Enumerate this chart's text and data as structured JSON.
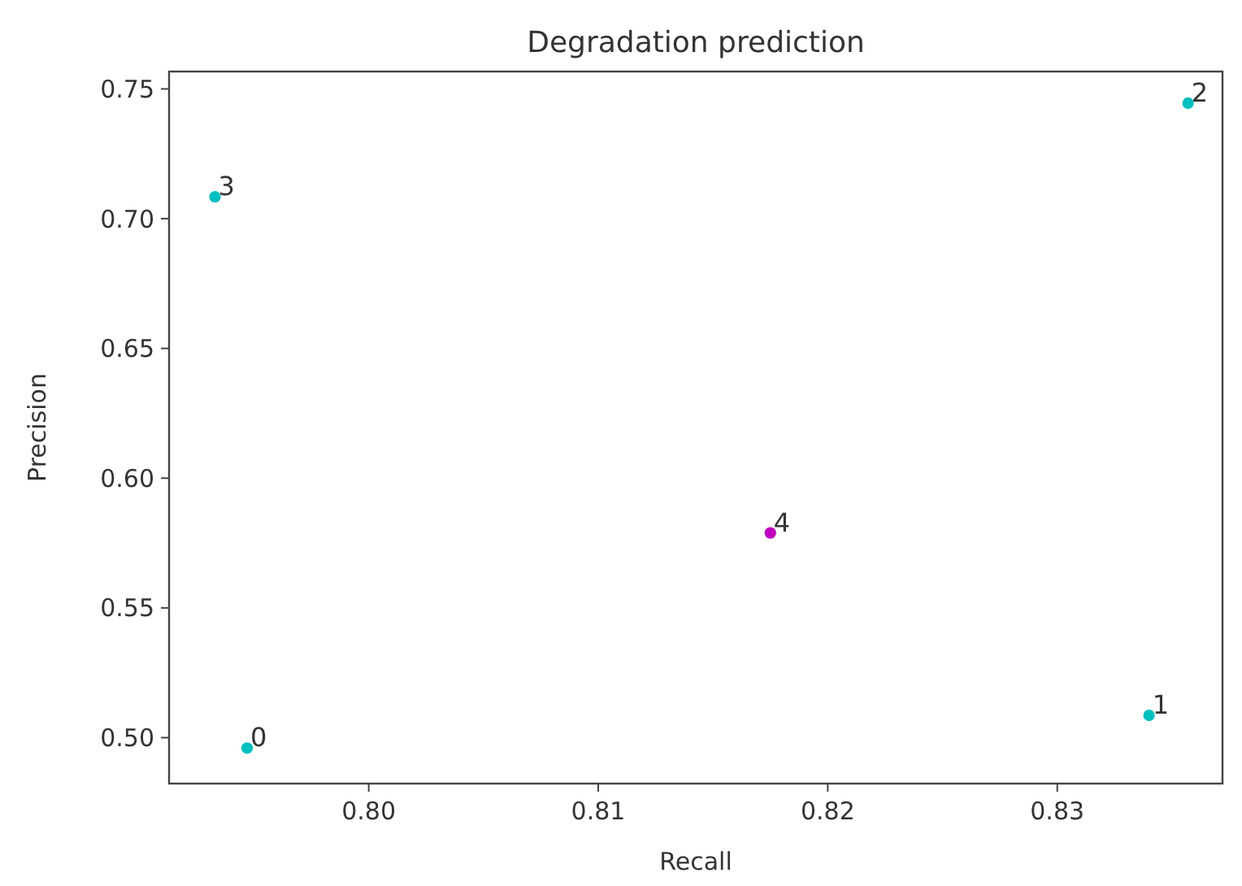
{
  "chart_data": {
    "type": "scatter",
    "title": "Degradation prediction",
    "xlabel": "Recall",
    "ylabel": "Precision",
    "x": [
      0.7947,
      0.834,
      0.8357,
      0.7933,
      0.8175
    ],
    "values": [
      0.496,
      0.5086,
      0.7445,
      0.7084,
      0.5789
    ],
    "colors": [
      "#00bfbf",
      "#00bfbf",
      "#00bfbf",
      "#00bfbf",
      "#bf00bf"
    ],
    "xlim": [
      0.7913,
      0.8372
    ],
    "ylim": [
      0.4823,
      0.7567
    ],
    "xticks": [
      {
        "value": 0.8,
        "label": "0.80"
      },
      0.81,
      0.82,
      0.83
    ],
    "yticks": [
      {
        "value": 0.5,
        "label": "0.50"
      },
      0.55,
      {
        "value": 0.6,
        "label": "0.60"
      },
      0.65,
      {
        "value": 0.7,
        "label": "0.70"
      },
      0.75
    ],
    "marker": "circle",
    "grid": false,
    "annotations": [
      {
        "text": "0",
        "x": 0.7947,
        "y": 0.496
      },
      {
        "text": "1",
        "x": 0.834,
        "y": 0.5086
      },
      {
        "text": "2",
        "x": 0.8357,
        "y": 0.7445
      },
      {
        "text": "3",
        "x": 0.7933,
        "y": 0.7084
      },
      {
        "text": "4",
        "x": 0.8175,
        "y": 0.5789
      }
    ]
  }
}
